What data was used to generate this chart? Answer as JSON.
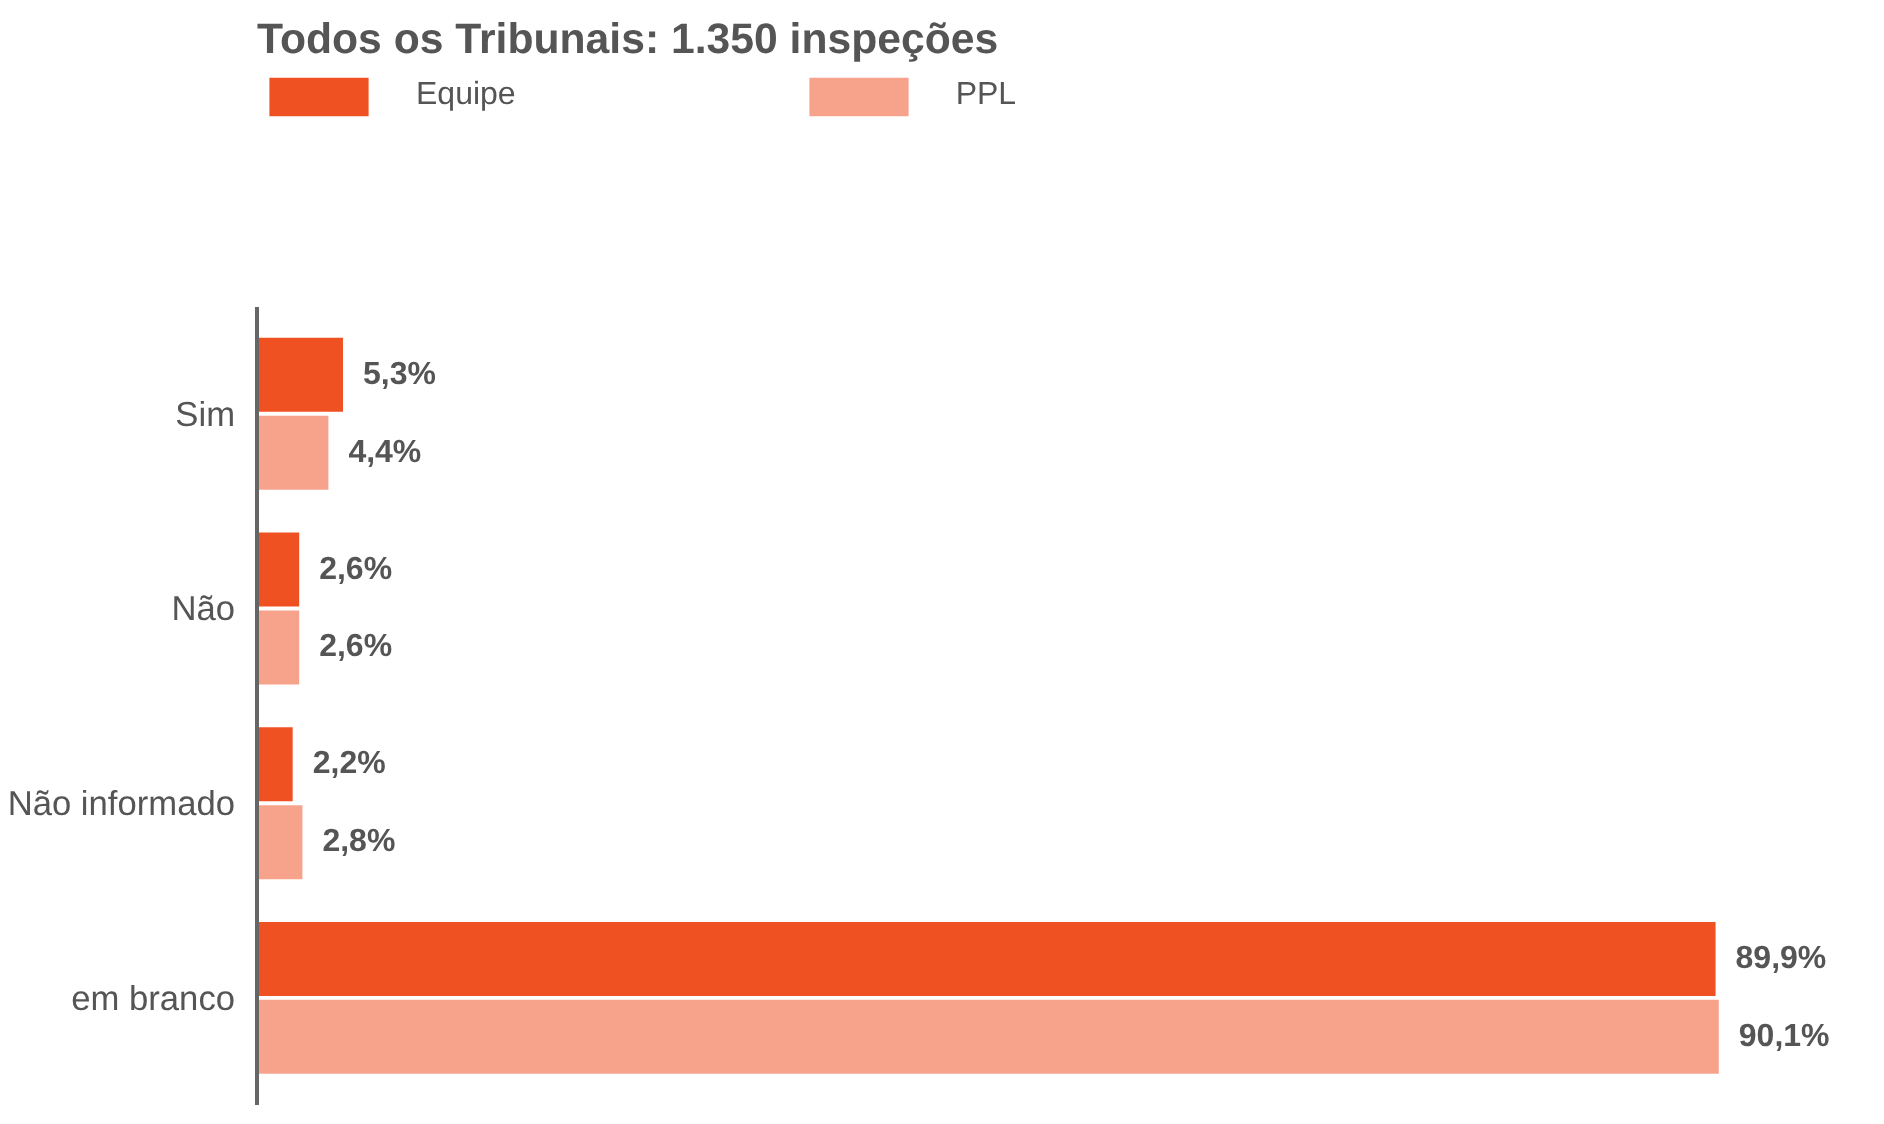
{
  "chart_data": {
    "type": "bar",
    "orientation": "horizontal",
    "title": "Todos os Tribunais: 1.350 inspeções",
    "categories": [
      "Sim",
      "Não",
      "Não informado",
      "em branco"
    ],
    "series": [
      {
        "name": "Equipe",
        "color": "#f05123",
        "values": [
          5.3,
          2.6,
          2.2,
          89.9
        ],
        "value_labels": [
          "5,3%",
          "2,6%",
          "2,2%",
          "89,9%"
        ]
      },
      {
        "name": "PPL",
        "color": "#f7a38c",
        "values": [
          4.4,
          2.6,
          2.8,
          90.1
        ],
        "value_labels": [
          "4,4%",
          "2,6%",
          "2,8%",
          "90,1%"
        ]
      }
    ],
    "legend": "top left",
    "grid": false
  }
}
